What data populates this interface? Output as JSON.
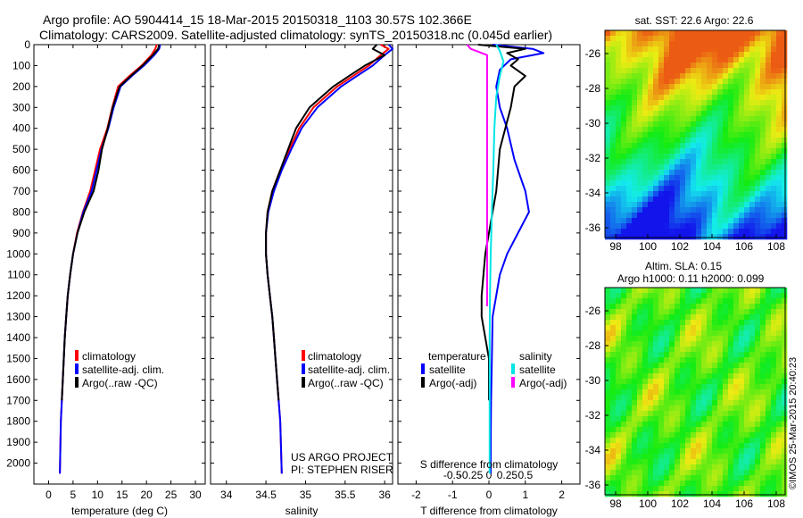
{
  "header": {
    "line1": "Argo profile: AO 5904414_15 18-Mar-2015 20150318_1103 30.57S 102.366E",
    "line2": "Climatology: CARS2009. Satellite-adjusted climatology: synTS_20150318.nc (0.045d earlier)"
  },
  "colors": {
    "climatology": "#ff0000",
    "satellite": "#0000ff",
    "argo": "#000000",
    "satellite_s": "#00e5e5",
    "argo_s": "#ff00ff"
  },
  "legend_profile": [
    "climatology",
    "satellite-adj. clim.",
    "Argo(..raw -QC)"
  ],
  "legend_diff": {
    "temp_header": "temperature",
    "sal_header": "salinity",
    "temp_items": [
      "satellite",
      "Argo(-adj)"
    ],
    "sal_items": [
      "satellite",
      "Argo(-adj)"
    ]
  },
  "credit": {
    "line1": "US ARGO PROJECT",
    "line2": "PI: STEPHEN RISER"
  },
  "maps": {
    "sst_title": "sat. SST: 22.6  Argo: 22.6",
    "sla_title1": "Altim. SLA: 0.15",
    "sla_title2": "Argo h1000: 0.11  h2000: 0.099",
    "lat_ticks": [
      "-26",
      "-28",
      "-30",
      "-32",
      "-34",
      "-36"
    ],
    "lon_ticks": [
      "98",
      "100",
      "102",
      "104",
      "106",
      "108"
    ]
  },
  "stamp": "©IMOS 25-Mar-2015 20:40:23",
  "chart_data": [
    {
      "type": "line",
      "xlabel": "temperature (deg C)",
      "ylabel": "",
      "xlim": [
        -3,
        32
      ],
      "ylim": [
        2100,
        0
      ],
      "x_ticks": [
        0,
        5,
        10,
        15,
        20,
        25,
        30
      ],
      "y_ticks": [
        0,
        100,
        200,
        300,
        400,
        500,
        600,
        700,
        800,
        900,
        1000,
        1100,
        1200,
        1300,
        1400,
        1500,
        1600,
        1700,
        1800,
        1900,
        2000
      ],
      "series": [
        {
          "name": "climatology",
          "color": "#ff0000",
          "x": [
            22.1,
            21.8,
            21.0,
            19.0,
            16.5,
            14.2,
            13.0,
            12.0,
            10.5,
            9.5,
            8.5,
            7.0,
            5.8,
            5.0,
            4.4,
            3.9,
            3.6,
            3.3,
            3.1,
            2.9,
            2.7,
            2.5,
            2.3
          ],
          "y": [
            0,
            20,
            50,
            100,
            150,
            200,
            300,
            400,
            500,
            600,
            700,
            800,
            900,
            1000,
            1100,
            1200,
            1300,
            1400,
            1500,
            1600,
            1700,
            1800,
            2050
          ]
        },
        {
          "name": "satellite-adj. clim.",
          "color": "#0000ff",
          "x": [
            22.8,
            22.6,
            21.6,
            19.5,
            17.0,
            14.7,
            13.3,
            12.2,
            10.8,
            9.8,
            8.8,
            7.1,
            5.9,
            5.0,
            4.4,
            3.9,
            3.6,
            3.3,
            3.1,
            2.9,
            2.7,
            2.5,
            2.3
          ],
          "y": [
            0,
            20,
            50,
            100,
            150,
            200,
            300,
            400,
            500,
            600,
            700,
            800,
            900,
            1000,
            1100,
            1200,
            1300,
            1400,
            1500,
            1600,
            1700,
            1800,
            2050
          ]
        },
        {
          "name": "Argo(..raw -QC)",
          "color": "#000000",
          "x": [
            22.6,
            22.4,
            21.3,
            19.2,
            16.8,
            14.5,
            13.1,
            12.1,
            10.9,
            10.2,
            9.2,
            7.3,
            5.9,
            5.0,
            4.4,
            3.9,
            3.6,
            3.3,
            3.1,
            2.9,
            2.7
          ],
          "y": [
            0,
            20,
            50,
            100,
            150,
            200,
            300,
            400,
            500,
            600,
            700,
            800,
            900,
            1000,
            1100,
            1200,
            1300,
            1400,
            1500,
            1600,
            1700
          ]
        }
      ]
    },
    {
      "type": "line",
      "xlabel": "salinity",
      "ylabel": "",
      "xlim": [
        33.8,
        36.1
      ],
      "ylim": [
        2100,
        0
      ],
      "x_ticks": [
        34,
        34.5,
        35,
        35.5,
        36
      ],
      "series": [
        {
          "name": "climatology",
          "color": "#ff0000",
          "x": [
            35.95,
            36.05,
            35.95,
            35.8,
            35.6,
            35.4,
            35.1,
            34.92,
            34.8,
            34.68,
            34.58,
            34.52,
            34.5,
            34.5,
            34.52,
            34.55,
            34.58,
            34.6,
            34.62,
            34.64,
            34.66,
            34.68,
            34.7
          ],
          "y": [
            0,
            20,
            50,
            100,
            150,
            200,
            300,
            400,
            500,
            600,
            700,
            800,
            900,
            1000,
            1100,
            1200,
            1300,
            1400,
            1500,
            1600,
            1700,
            1800,
            2050
          ]
        },
        {
          "name": "satellite-adj. clim.",
          "color": "#0000ff",
          "x": [
            36.05,
            36.1,
            36.0,
            35.85,
            35.65,
            35.45,
            35.15,
            34.95,
            34.82,
            34.7,
            34.6,
            34.53,
            34.5,
            34.5,
            34.52,
            34.55,
            34.58,
            34.6,
            34.62,
            34.64,
            34.66,
            34.68,
            34.7
          ],
          "y": [
            0,
            20,
            50,
            100,
            150,
            200,
            300,
            400,
            500,
            600,
            700,
            800,
            900,
            1000,
            1100,
            1200,
            1300,
            1400,
            1500,
            1600,
            1700,
            1800,
            2050
          ]
        },
        {
          "name": "Argo(..raw -QC)",
          "color": "#000000",
          "x": [
            35.9,
            35.85,
            36.0,
            35.75,
            35.55,
            35.35,
            35.05,
            34.88,
            34.78,
            34.68,
            34.58,
            34.52,
            34.5,
            34.5,
            34.52,
            34.55,
            34.58,
            34.6,
            34.62,
            34.64,
            34.66
          ],
          "y": [
            0,
            20,
            50,
            100,
            150,
            200,
            300,
            400,
            500,
            600,
            700,
            800,
            900,
            1000,
            1100,
            1200,
            1300,
            1400,
            1500,
            1600,
            1700
          ]
        }
      ]
    },
    {
      "type": "line",
      "title": "S difference from climatology",
      "xlabel": "T difference from climatology",
      "ylabel": "",
      "xlim": [
        -2.5,
        2.5
      ],
      "ylim": [
        2100,
        0
      ],
      "x_ticks": [
        -2,
        -1,
        0,
        1,
        2
      ],
      "s_ticks": [
        -0.5,
        -0.25,
        0,
        0.25,
        0.5
      ],
      "series": [
        {
          "name": "temperature satellite",
          "color": "#0000ff",
          "x": [
            0.1,
            1.2,
            1.5,
            0.6,
            0.3,
            0.2,
            0.3,
            0.5,
            0.7,
            1.0,
            1.1,
            0.8,
            0.5,
            0.3,
            0.2,
            0.1,
            0.08,
            0.06,
            0.05,
            0.05
          ],
          "y": [
            0,
            20,
            40,
            70,
            120,
            200,
            300,
            400,
            550,
            700,
            800,
            900,
            1000,
            1100,
            1200,
            1300,
            1500,
            1700,
            1900,
            2050
          ]
        },
        {
          "name": "temperature Argo(-adj)",
          "color": "#000000",
          "x": [
            -0.3,
            1.0,
            0.5,
            0.8,
            0.6,
            1.0,
            0.7,
            0.6,
            0.3,
            0.2,
            0.1,
            0.0,
            -0.1,
            -0.2,
            -0.2,
            -0.1,
            0.0,
            0.0
          ],
          "y": [
            0,
            20,
            40,
            70,
            100,
            150,
            200,
            300,
            500,
            700,
            800,
            900,
            1000,
            1200,
            1300,
            1400,
            1500,
            1700
          ]
        },
        {
          "name": "salinity satellite",
          "color": "#00e5e5",
          "x": [
            0.2,
            0.3,
            0.4,
            0.3,
            0.2,
            0.15,
            0.12,
            0.08,
            0.05,
            0.03,
            0.02,
            0.02,
            0.02,
            0.02
          ],
          "y": [
            0,
            30,
            80,
            150,
            250,
            400,
            600,
            800,
            1000,
            1200,
            1400,
            1600,
            1800,
            2050
          ]
        },
        {
          "name": "salinity Argo(-adj)",
          "color": "#ff00ff",
          "x": [
            -0.6,
            -0.5,
            -0.05,
            -0.05,
            -0.05,
            -0.05,
            -0.05,
            -0.05,
            -0.05
          ],
          "y": [
            0,
            20,
            50,
            100,
            300,
            600,
            900,
            1100,
            1250
          ]
        }
      ]
    }
  ]
}
